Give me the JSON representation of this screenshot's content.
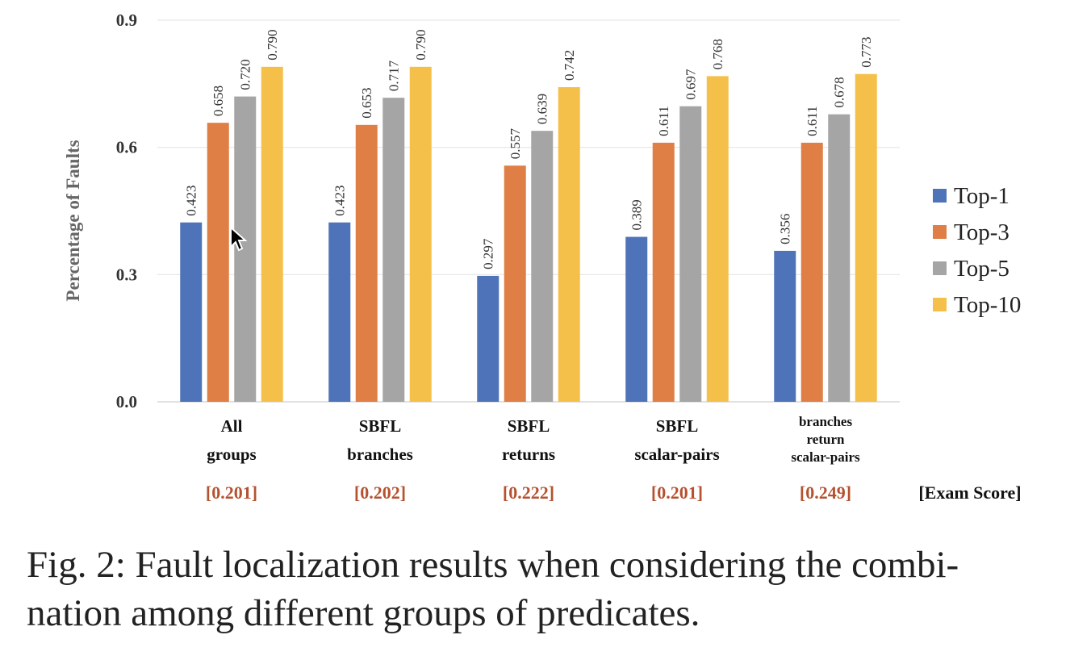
{
  "chart_data": {
    "type": "bar",
    "ylabel": "Percentage of Faults",
    "ylim": [
      0,
      0.9
    ],
    "yticks": [
      "0.0",
      "0.3",
      "0.6",
      "0.9"
    ],
    "grid": true,
    "legend_position": "right",
    "categories": [
      [
        "All",
        "groups"
      ],
      [
        "SBFL",
        "branches"
      ],
      [
        "SBFL",
        "returns"
      ],
      [
        "SBFL",
        "scalar-pairs"
      ],
      [
        "branches",
        "return",
        "scalar-pairs"
      ]
    ],
    "exam_scores": [
      "[0.201]",
      "[0.202]",
      "[0.222]",
      "[0.201]",
      "[0.249]"
    ],
    "exam_label": "[Exam Score]",
    "series": [
      {
        "name": "Top-1",
        "color": "#4e73b8",
        "values": [
          0.423,
          0.423,
          0.297,
          0.389,
          0.356
        ]
      },
      {
        "name": "Top-3",
        "color": "#df7f45",
        "values": [
          0.658,
          0.653,
          0.557,
          0.611,
          0.611
        ]
      },
      {
        "name": "Top-5",
        "color": "#a5a5a5",
        "values": [
          0.72,
          0.717,
          0.639,
          0.697,
          0.678
        ]
      },
      {
        "name": "Top-10",
        "color": "#f5c04a",
        "values": [
          0.79,
          0.79,
          0.742,
          0.768,
          0.773
        ]
      }
    ],
    "colors": {
      "exam_score": "#b5522f",
      "axis_text": "#333333",
      "gridline": "#e6e6e6"
    }
  },
  "caption": {
    "line1": "Fig. 2: Fault localization results when considering the combi-",
    "line2": "nation among different groups of predicates."
  }
}
